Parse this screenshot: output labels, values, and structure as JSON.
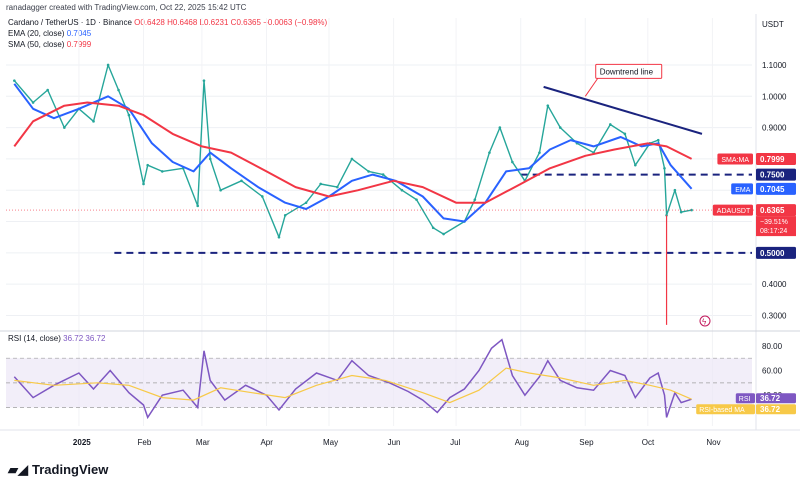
{
  "credit": "ranadagger created with TradingView.com, Oct 22, 2025 15:42 UTC",
  "header": {
    "symbol_line": "Cardano / TetherUS · 1D · Binance",
    "ohlc": "O0.6428 H0.6468 L0.6231 C0.6365 −0.0063 (−0.98%)",
    "ema_label": "EMA (20, close)",
    "ema_value": "0.7045",
    "sma_label": "SMA (50, close)",
    "sma_value": "0.7999"
  },
  "currency": "USDT",
  "brand": "TradingView",
  "chart_data": {
    "type": "line",
    "title": "Cardano / TetherUS · 1D · Binance",
    "price_axis": {
      "ticks": [
        "1.1000",
        "1.0000",
        "0.9000",
        "0.8000",
        "0.7000",
        "0.6000",
        "0.5000",
        "0.4000",
        "0.3000"
      ],
      "range": [
        0.26,
        1.25
      ]
    },
    "x_ticks": [
      "2025",
      "Feb",
      "Mar",
      "Apr",
      "May",
      "Jun",
      "Jul",
      "Aug",
      "Sep",
      "Oct",
      "Nov"
    ],
    "series": [
      {
        "name": "ADAUSDT",
        "color": "#26a69a",
        "points": [
          [
            "2024-12-01",
            1.05
          ],
          [
            "2024-12-10",
            0.98
          ],
          [
            "2024-12-17",
            1.02
          ],
          [
            "2024-12-25",
            0.9
          ],
          [
            "2025-01-01",
            0.96
          ],
          [
            "2025-01-08",
            0.92
          ],
          [
            "2025-01-15",
            1.1
          ],
          [
            "2025-01-20",
            1.02
          ],
          [
            "2025-01-25",
            0.94
          ],
          [
            "2025-02-01",
            0.72
          ],
          [
            "2025-02-03",
            0.78
          ],
          [
            "2025-02-10",
            0.76
          ],
          [
            "2025-02-20",
            0.77
          ],
          [
            "2025-02-27",
            0.65
          ],
          [
            "2025-03-02",
            1.05
          ],
          [
            "2025-03-05",
            0.8
          ],
          [
            "2025-03-10",
            0.7
          ],
          [
            "2025-03-20",
            0.73
          ],
          [
            "2025-03-30",
            0.68
          ],
          [
            "2025-04-07",
            0.55
          ],
          [
            "2025-04-10",
            0.62
          ],
          [
            "2025-04-20",
            0.66
          ],
          [
            "2025-04-27",
            0.72
          ],
          [
            "2025-05-05",
            0.71
          ],
          [
            "2025-05-12",
            0.8
          ],
          [
            "2025-05-20",
            0.76
          ],
          [
            "2025-05-27",
            0.75
          ],
          [
            "2025-06-05",
            0.7
          ],
          [
            "2025-06-12",
            0.67
          ],
          [
            "2025-06-20",
            0.58
          ],
          [
            "2025-06-25",
            0.56
          ],
          [
            "2025-07-05",
            0.6
          ],
          [
            "2025-07-10",
            0.67
          ],
          [
            "2025-07-17",
            0.82
          ],
          [
            "2025-07-22",
            0.9
          ],
          [
            "2025-07-28",
            0.79
          ],
          [
            "2025-08-03",
            0.73
          ],
          [
            "2025-08-10",
            0.82
          ],
          [
            "2025-08-14",
            0.97
          ],
          [
            "2025-08-20",
            0.9
          ],
          [
            "2025-08-28",
            0.85
          ],
          [
            "2025-09-05",
            0.82
          ],
          [
            "2025-09-13",
            0.91
          ],
          [
            "2025-09-20",
            0.88
          ],
          [
            "2025-09-25",
            0.78
          ],
          [
            "2025-10-02",
            0.85
          ],
          [
            "2025-10-06",
            0.86
          ],
          [
            "2025-10-09",
            0.77
          ],
          [
            "2025-10-10",
            0.62
          ],
          [
            "2025-10-14",
            0.7
          ],
          [
            "2025-10-17",
            0.63
          ],
          [
            "2025-10-22",
            0.6365
          ]
        ]
      },
      {
        "name": "EMA (20, close)",
        "color": "#2962ff",
        "points": [
          [
            "2024-12-01",
            1.04
          ],
          [
            "2024-12-10",
            0.96
          ],
          [
            "2024-12-20",
            0.93
          ],
          [
            "2025-01-01",
            0.96
          ],
          [
            "2025-01-15",
            1.0
          ],
          [
            "2025-01-25",
            0.96
          ],
          [
            "2025-02-05",
            0.85
          ],
          [
            "2025-02-15",
            0.79
          ],
          [
            "2025-02-25",
            0.76
          ],
          [
            "2025-03-05",
            0.82
          ],
          [
            "2025-03-15",
            0.77
          ],
          [
            "2025-03-28",
            0.71
          ],
          [
            "2025-04-10",
            0.66
          ],
          [
            "2025-04-20",
            0.64
          ],
          [
            "2025-05-01",
            0.68
          ],
          [
            "2025-05-12",
            0.73
          ],
          [
            "2025-05-22",
            0.75
          ],
          [
            "2025-06-02",
            0.73
          ],
          [
            "2025-06-15",
            0.68
          ],
          [
            "2025-06-25",
            0.61
          ],
          [
            "2025-07-05",
            0.6
          ],
          [
            "2025-07-15",
            0.66
          ],
          [
            "2025-07-25",
            0.76
          ],
          [
            "2025-08-05",
            0.77
          ],
          [
            "2025-08-15",
            0.83
          ],
          [
            "2025-08-25",
            0.86
          ],
          [
            "2025-09-05",
            0.84
          ],
          [
            "2025-09-18",
            0.87
          ],
          [
            "2025-09-28",
            0.84
          ],
          [
            "2025-10-06",
            0.85
          ],
          [
            "2025-10-12",
            0.78
          ],
          [
            "2025-10-22",
            0.7045
          ]
        ]
      },
      {
        "name": "SMA (50, close)",
        "color": "#f23645",
        "points": [
          [
            "2024-12-01",
            0.84
          ],
          [
            "2024-12-10",
            0.92
          ],
          [
            "2024-12-25",
            0.97
          ],
          [
            "2025-01-05",
            0.98
          ],
          [
            "2025-01-20",
            0.97
          ],
          [
            "2025-02-01",
            0.94
          ],
          [
            "2025-02-15",
            0.88
          ],
          [
            "2025-03-01",
            0.84
          ],
          [
            "2025-03-15",
            0.82
          ],
          [
            "2025-04-01",
            0.76
          ],
          [
            "2025-04-15",
            0.71
          ],
          [
            "2025-05-01",
            0.68
          ],
          [
            "2025-05-15",
            0.7
          ],
          [
            "2025-06-01",
            0.73
          ],
          [
            "2025-06-15",
            0.71
          ],
          [
            "2025-07-01",
            0.66
          ],
          [
            "2025-07-15",
            0.66
          ],
          [
            "2025-08-01",
            0.72
          ],
          [
            "2025-08-15",
            0.77
          ],
          [
            "2025-09-01",
            0.81
          ],
          [
            "2025-09-15",
            0.83
          ],
          [
            "2025-10-01",
            0.85
          ],
          [
            "2025-10-10",
            0.84
          ],
          [
            "2025-10-22",
            0.7999
          ]
        ]
      }
    ],
    "horizontal_levels": [
      {
        "price": 0.75,
        "label": "0.7500",
        "style": "dashed",
        "color": "#1a237e"
      },
      {
        "price": 0.5,
        "label": "0.5000",
        "style": "dashed",
        "color": "#1a237e"
      }
    ],
    "trendline": {
      "label": "Downtrend line",
      "from": [
        "2025-08-12",
        1.03
      ],
      "to": [
        "2025-10-27",
        0.88
      ],
      "color": "#1a237e"
    },
    "annotations": {
      "low_wick": [
        "2025-10-10",
        0.27
      ],
      "adausdt_change": "−39.51%",
      "countdown": "08:17:24"
    },
    "price_labels": [
      {
        "name": "SMA:MA",
        "value": "0.7999",
        "color": "#f23645",
        "price": 0.7999
      },
      {
        "name": "",
        "value": "0.7500",
        "color": "#1a237e",
        "price": 0.75
      },
      {
        "name": "EMA",
        "value": "0.7045",
        "color": "#2962ff",
        "price": 0.7045
      },
      {
        "name": "ADAUSDT",
        "value": "0.6365",
        "color": "#f23645",
        "price": 0.6365
      },
      {
        "name": "",
        "value": "0.5000",
        "color": "#1a237e",
        "price": 0.5
      }
    ],
    "rsi": {
      "label": "RSI (14, close)",
      "value": "36.72",
      "ma_value": "36.72",
      "ticks": [
        "80.00",
        "60.00",
        "40.00"
      ],
      "range": [
        15,
        88
      ],
      "band": [
        30,
        70
      ],
      "series": [
        {
          "name": "RSI",
          "color": "#7e57c2",
          "points": [
            [
              "2024-12-01",
              55
            ],
            [
              "2024-12-10",
              38
            ],
            [
              "2024-12-20",
              48
            ],
            [
              "2025-01-01",
              58
            ],
            [
              "2025-01-08",
              45
            ],
            [
              "2025-01-16",
              60
            ],
            [
              "2025-01-25",
              42
            ],
            [
              "2025-02-01",
              32
            ],
            [
              "2025-02-03",
              22
            ],
            [
              "2025-02-10",
              40
            ],
            [
              "2025-02-20",
              44
            ],
            [
              "2025-02-27",
              30
            ],
            [
              "2025-03-02",
              76
            ],
            [
              "2025-03-05",
              52
            ],
            [
              "2025-03-12",
              36
            ],
            [
              "2025-03-22",
              48
            ],
            [
              "2025-04-01",
              40
            ],
            [
              "2025-04-07",
              28
            ],
            [
              "2025-04-15",
              45
            ],
            [
              "2025-04-25",
              58
            ],
            [
              "2025-05-05",
              52
            ],
            [
              "2025-05-12",
              68
            ],
            [
              "2025-05-20",
              56
            ],
            [
              "2025-05-30",
              50
            ],
            [
              "2025-06-08",
              43
            ],
            [
              "2025-06-15",
              36
            ],
            [
              "2025-06-22",
              26
            ],
            [
              "2025-06-28",
              38
            ],
            [
              "2025-07-05",
              45
            ],
            [
              "2025-07-12",
              60
            ],
            [
              "2025-07-18",
              78
            ],
            [
              "2025-07-23",
              85
            ],
            [
              "2025-07-28",
              56
            ],
            [
              "2025-08-03",
              40
            ],
            [
              "2025-08-10",
              55
            ],
            [
              "2025-08-14",
              68
            ],
            [
              "2025-08-20",
              52
            ],
            [
              "2025-08-28",
              46
            ],
            [
              "2025-09-05",
              44
            ],
            [
              "2025-09-13",
              60
            ],
            [
              "2025-09-20",
              56
            ],
            [
              "2025-09-25",
              38
            ],
            [
              "2025-10-02",
              54
            ],
            [
              "2025-10-06",
              58
            ],
            [
              "2025-10-09",
              40
            ],
            [
              "2025-10-10",
              22
            ],
            [
              "2025-10-14",
              42
            ],
            [
              "2025-10-17",
              34
            ],
            [
              "2025-10-22",
              36.72
            ]
          ]
        },
        {
          "name": "RSI-based MA",
          "color": "#f7c948",
          "points": [
            [
              "2024-12-01",
              52
            ],
            [
              "2024-12-20",
              48
            ],
            [
              "2025-01-10",
              50
            ],
            [
              "2025-01-25",
              48
            ],
            [
              "2025-02-10",
              38
            ],
            [
              "2025-02-25",
              36
            ],
            [
              "2025-03-10",
              46
            ],
            [
              "2025-03-25",
              42
            ],
            [
              "2025-04-10",
              38
            ],
            [
              "2025-04-25",
              48
            ],
            [
              "2025-05-12",
              56
            ],
            [
              "2025-05-28",
              52
            ],
            [
              "2025-06-15",
              42
            ],
            [
              "2025-06-28",
              34
            ],
            [
              "2025-07-12",
              44
            ],
            [
              "2025-07-25",
              62
            ],
            [
              "2025-08-05",
              58
            ],
            [
              "2025-08-20",
              54
            ],
            [
              "2025-09-05",
              48
            ],
            [
              "2025-09-20",
              52
            ],
            [
              "2025-10-02",
              48
            ],
            [
              "2025-10-12",
              44
            ],
            [
              "2025-10-22",
              36.72
            ]
          ]
        }
      ]
    }
  }
}
